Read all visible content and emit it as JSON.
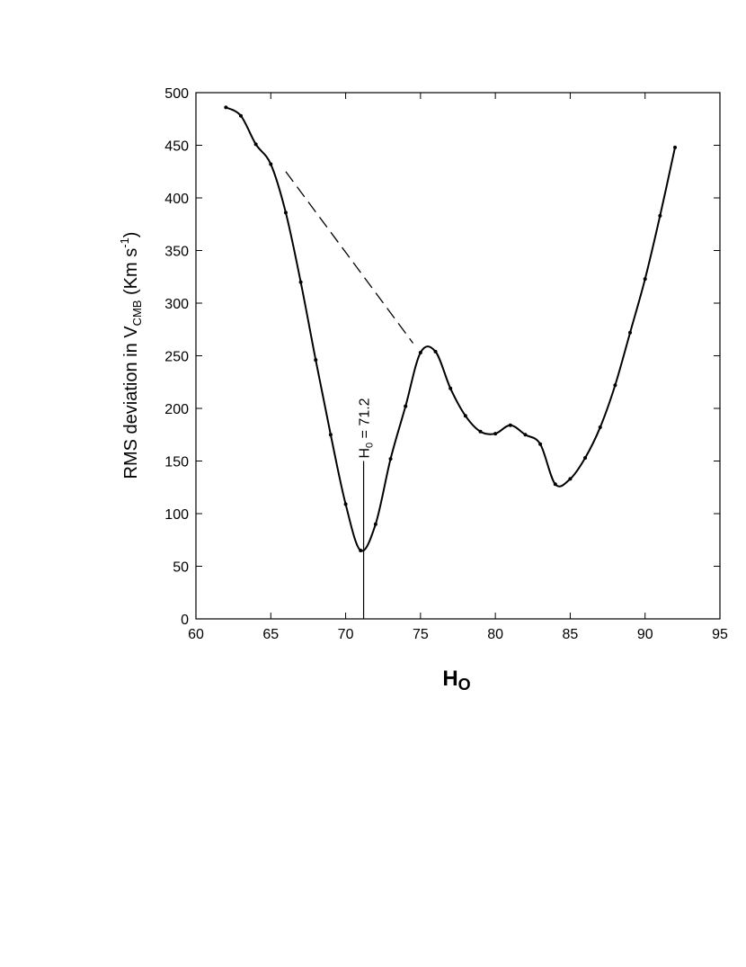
{
  "chart_data": {
    "type": "line",
    "x_label": {
      "main": "H",
      "sub": "O"
    },
    "y_label": {
      "main": "RMS deviation in V",
      "sub": "CMB",
      "mid": " (Km s",
      "sup": "-1",
      "end": ")"
    },
    "x": [
      62,
      63,
      64,
      65,
      66,
      67,
      68,
      69,
      70,
      71,
      72,
      73,
      74,
      75,
      76,
      77,
      78,
      79,
      80,
      81,
      82,
      83,
      84,
      85,
      86,
      87,
      88,
      89,
      90,
      91,
      92
    ],
    "series": [
      {
        "color": "#000000",
        "values": [
          486,
          478,
          451,
          432,
          386,
          320,
          246,
          175,
          109,
          65,
          90,
          152,
          202,
          253,
          254,
          219,
          193,
          178,
          176,
          184,
          175,
          166,
          128,
          133,
          153,
          182,
          222,
          272,
          323,
          383,
          448
        ]
      }
    ],
    "xlim": [
      60,
      95
    ],
    "xticks": [
      60,
      65,
      70,
      75,
      80,
      85,
      90,
      95
    ],
    "ylim": [
      0,
      500
    ],
    "yticks": [
      0,
      50,
      100,
      150,
      200,
      250,
      300,
      350,
      400,
      450,
      500
    ],
    "annotation": {
      "main": "H",
      "sub": "0",
      "rest": " = 71.2",
      "x": 71.2,
      "line_top": 150
    },
    "dashed_line": {
      "x": [
        66,
        74.5
      ],
      "y": [
        425,
        262
      ]
    }
  }
}
